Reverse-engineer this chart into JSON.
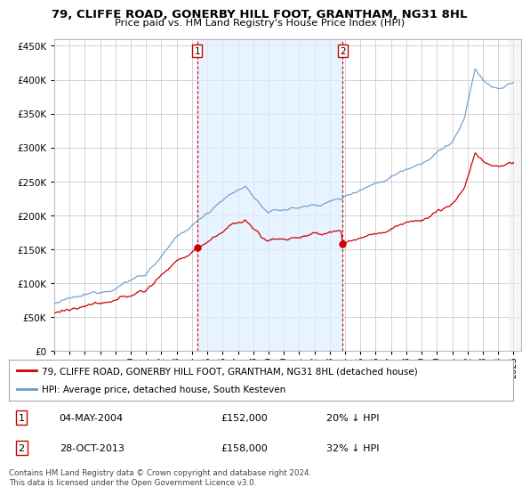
{
  "title": "79, CLIFFE ROAD, GONERBY HILL FOOT, GRANTHAM, NG31 8HL",
  "subtitle": "Price paid vs. HM Land Registry's House Price Index (HPI)",
  "legend_line1": "79, CLIFFE ROAD, GONERBY HILL FOOT, GRANTHAM, NG31 8HL (detached house)",
  "legend_line2": "HPI: Average price, detached house, South Kesteven",
  "table_row1_num": "1",
  "table_row1_date": "04-MAY-2004",
  "table_row1_price": "£152,000",
  "table_row1_hpi": "20% ↓ HPI",
  "table_row2_num": "2",
  "table_row2_date": "28-OCT-2013",
  "table_row2_price": "£158,000",
  "table_row2_hpi": "32% ↓ HPI",
  "footnote": "Contains HM Land Registry data © Crown copyright and database right 2024.\nThis data is licensed under the Open Government Licence v3.0.",
  "ylim": [
    0,
    460000
  ],
  "yticks": [
    0,
    50000,
    100000,
    150000,
    200000,
    250000,
    300000,
    350000,
    400000,
    450000
  ],
  "ytick_labels": [
    "£0",
    "£50K",
    "£100K",
    "£150K",
    "£200K",
    "£250K",
    "£300K",
    "£350K",
    "£400K",
    "£450K"
  ],
  "xtick_years": [
    1995,
    1996,
    1997,
    1998,
    1999,
    2000,
    2001,
    2002,
    2003,
    2004,
    2005,
    2006,
    2007,
    2008,
    2009,
    2010,
    2011,
    2012,
    2013,
    2014,
    2015,
    2016,
    2017,
    2018,
    2019,
    2020,
    2021,
    2022,
    2023,
    2024,
    2025
  ],
  "purchase1_x": 2004.34,
  "purchase1_y": 152000,
  "purchase2_x": 2013.83,
  "purchase2_y": 158000,
  "red_color": "#cc0000",
  "blue_color": "#6699cc",
  "blue_fill_color": "#ddeeff",
  "vline_color": "#cc0000",
  "grid_color": "#cccccc",
  "background_color": "#ffffff"
}
